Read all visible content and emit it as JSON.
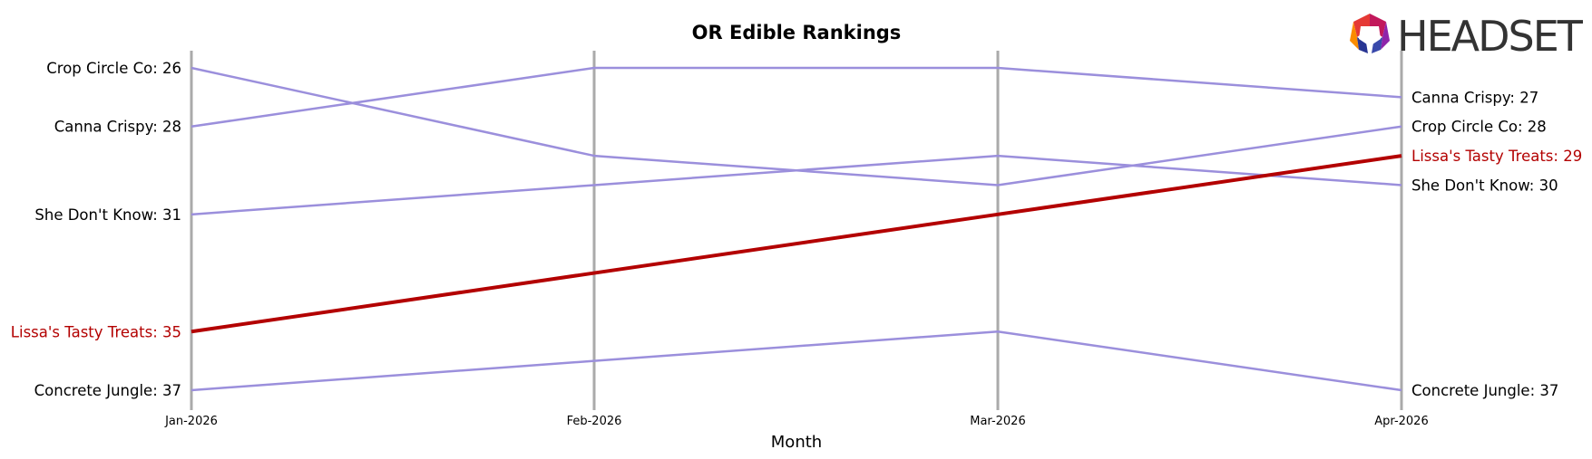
{
  "chart_data": {
    "type": "line",
    "title": "OR Edible Rankings",
    "xlabel": "Month",
    "ylabel": "",
    "categories": [
      "Jan-2026",
      "Feb-2026",
      "Mar-2026",
      "Apr-2026"
    ],
    "y_inverted": true,
    "ylim": [
      37,
      26
    ],
    "grid": "vertical gridlines at each month",
    "series": [
      {
        "name": "Crop Circle Co",
        "values": [
          26,
          29,
          30,
          28
        ],
        "color": "#9b8fdc",
        "highlight": false,
        "start_label": "Crop Circle Co: 26",
        "end_label": "Crop Circle Co: 28"
      },
      {
        "name": "Canna Crispy",
        "values": [
          28,
          26,
          26,
          27
        ],
        "color": "#9b8fdc",
        "highlight": false,
        "start_label": "Canna Crispy: 28",
        "end_label": "Canna Crispy: 27"
      },
      {
        "name": "She Don't Know",
        "values": [
          31,
          30,
          29,
          30
        ],
        "color": "#9b8fdc",
        "highlight": false,
        "start_label": "She Don't Know: 31",
        "end_label": "She Don't Know: 30"
      },
      {
        "name": "Lissa's Tasty Treats",
        "values": [
          35,
          33,
          31,
          29
        ],
        "color": "#b30000",
        "highlight": true,
        "start_label": "Lissa's Tasty Treats: 35",
        "end_label": "Lissa's Tasty Treats: 29"
      },
      {
        "name": "Concrete Jungle",
        "values": [
          37,
          36,
          35,
          37
        ],
        "color": "#9b8fdc",
        "highlight": false,
        "start_label": "Concrete Jungle: 37",
        "end_label": "Concrete Jungle: 37"
      }
    ]
  },
  "logo": {
    "text": "HEADSET"
  },
  "colors": {
    "highlight": "#b30000",
    "other": "#9b8fdc",
    "gridline": "#aaaaaa"
  }
}
